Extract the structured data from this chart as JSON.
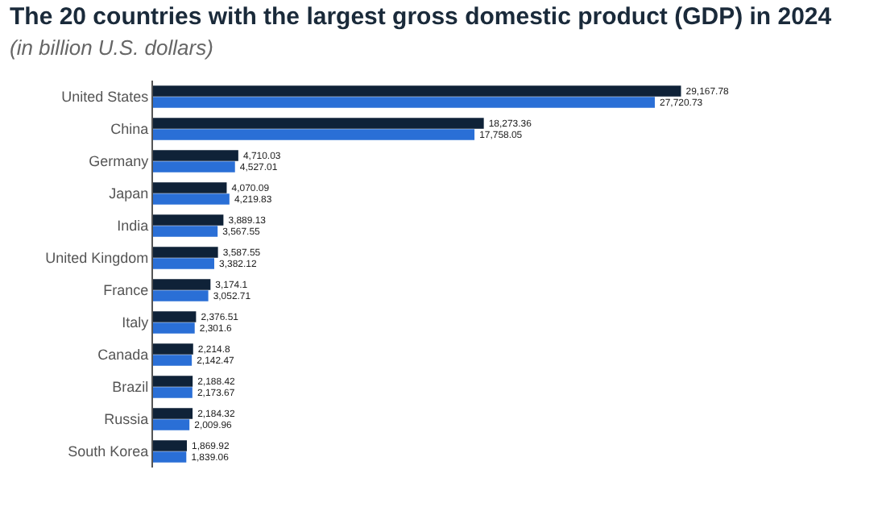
{
  "chart_data": {
    "type": "bar",
    "orientation": "horizontal",
    "title": "The 20 countries with the largest gross domestic product (GDP) in 2024",
    "subtitle": "(in billion U.S. dollars)",
    "categories": [
      "United States",
      "China",
      "Germany",
      "Japan",
      "India",
      "United Kingdom",
      "France",
      "Italy",
      "Canada",
      "Brazil",
      "Russia",
      "South Korea"
    ],
    "series": [
      {
        "color": "#0f2238",
        "values": [
          29167.78,
          18273.36,
          4710.03,
          4070.09,
          3889.13,
          3587.55,
          3174.1,
          2376.51,
          2214.8,
          2188.42,
          2184.32,
          1869.92
        ],
        "value_labels": [
          "29,167.78",
          "18,273.36",
          "4,710.03",
          "4,070.09",
          "3,889.13",
          "3,587.55",
          "3,174.1",
          "2,376.51",
          "2,214.8",
          "2,188.42",
          "2,184.32",
          "1,869.92"
        ]
      },
      {
        "color": "#2a6fd6",
        "values": [
          27720.73,
          17758.05,
          4527.01,
          4219.83,
          3567.55,
          3382.12,
          3052.71,
          2301.6,
          2142.47,
          2173.67,
          2009.96,
          1839.06
        ],
        "value_labels": [
          "27,720.73",
          "17,758.05",
          "4,527.01",
          "4,219.83",
          "3,567.55",
          "3,382.12",
          "3,052.71",
          "2,301.6",
          "2,142.47",
          "2,173.67",
          "2,009.96",
          "1,839.06"
        ]
      }
    ],
    "tick_labels": "y"
  }
}
